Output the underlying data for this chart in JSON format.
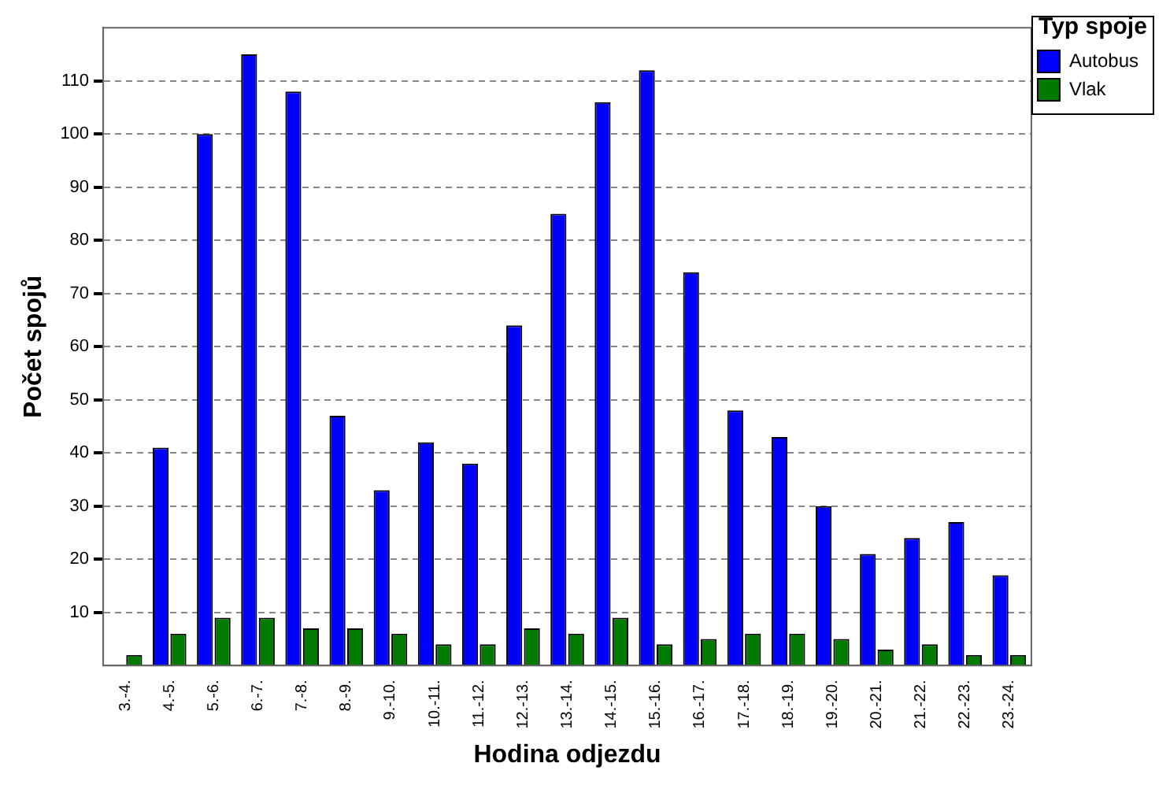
{
  "chart_data": {
    "type": "bar",
    "xlabel": "Hodina odjezdu",
    "ylabel": "Počet spojů",
    "legend_title": "Typ spoje",
    "categories": [
      "3.-4.",
      "4.-5.",
      "5.-6.",
      "6.-7.",
      "7.-8.",
      "8.-9.",
      "9.-10.",
      "10.-11.",
      "11.-12.",
      "12.-13.",
      "13.-14.",
      "14.-15.",
      "15.-16.",
      "16.-17.",
      "17.-18.",
      "18.-19.",
      "19.-20.",
      "20.-21.",
      "21.-22.",
      "22.-23.",
      "23.-24."
    ],
    "series": [
      {
        "name": "Autobus",
        "color": "#0000ff",
        "values": [
          null,
          41,
          100,
          115,
          108,
          47,
          33,
          42,
          38,
          64,
          85,
          106,
          112,
          74,
          48,
          43,
          30,
          21,
          24,
          27,
          17
        ]
      },
      {
        "name": "Vlak",
        "color": "#007a00",
        "values": [
          2,
          6,
          9,
          9,
          7,
          7,
          6,
          4,
          4,
          7,
          6,
          9,
          4,
          5,
          6,
          6,
          5,
          3,
          4,
          2,
          2
        ]
      }
    ],
    "ylim": [
      0,
      120
    ],
    "yticks": [
      10,
      20,
      30,
      40,
      50,
      60,
      70,
      80,
      90,
      100,
      110
    ],
    "grid": "y",
    "legend": "top right"
  }
}
